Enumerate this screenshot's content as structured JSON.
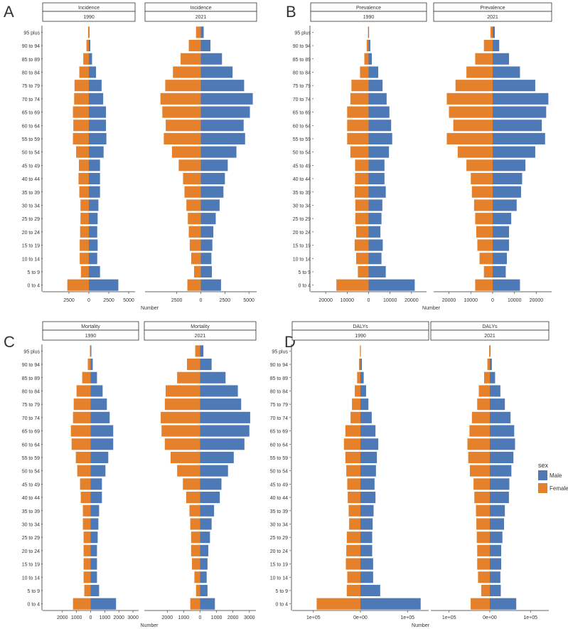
{
  "age_groups": [
    "0 to 4",
    "5 to 9",
    "10 to 14",
    "15 to 19",
    "20 to 24",
    "25 to 29",
    "30 to 34",
    "35 to 39",
    "40 to 44",
    "45 to 49",
    "50 to 54",
    "55 to 59",
    "60 to 64",
    "65 to 69",
    "70 to 74",
    "75 to 79",
    "80 to 84",
    "85 to 89",
    "90 to 94",
    "95 plus"
  ],
  "colors": {
    "male": "#4e79b7",
    "female": "#e5812b"
  },
  "legend": {
    "title": "sex",
    "items": [
      {
        "key": "male",
        "label": "Male"
      },
      {
        "key": "female",
        "label": "Female"
      }
    ]
  },
  "chart_data": [
    {
      "type": "bar",
      "panel_letter": "A",
      "measure": "Incidence",
      "xlabel": "Number",
      "scale": 5800,
      "ticks": [
        {
          "v": -2500,
          "label": "2500"
        },
        {
          "v": 0,
          "label": "0"
        },
        {
          "v": 2500,
          "label": "2500"
        },
        {
          "v": 5000,
          "label": "5000"
        }
      ],
      "facets": [
        {
          "strip_title": "Incidence",
          "strip_year": "1990",
          "male": [
            3700,
            1400,
            1050,
            1100,
            1050,
            1100,
            1200,
            1400,
            1400,
            1400,
            1850,
            2200,
            2150,
            2150,
            1800,
            1600,
            900,
            400,
            180,
            70
          ],
          "female": [
            2700,
            1000,
            1150,
            1150,
            1100,
            1050,
            1050,
            1200,
            1300,
            1250,
            1600,
            2000,
            1950,
            2000,
            1850,
            1800,
            1200,
            700,
            300,
            100
          ]
        },
        {
          "strip_title": "Incidence",
          "strip_year": "2021",
          "male": [
            2100,
            1150,
            1100,
            1200,
            1300,
            1550,
            1950,
            2350,
            2500,
            2800,
            3700,
            4600,
            4450,
            5100,
            5400,
            4500,
            3300,
            2200,
            1000,
            300
          ],
          "female": [
            1400,
            700,
            1000,
            1150,
            1250,
            1350,
            1500,
            1700,
            1850,
            2300,
            3000,
            3850,
            3650,
            4000,
            4200,
            3700,
            2900,
            2100,
            1250,
            500
          ]
        }
      ]
    },
    {
      "type": "bar",
      "panel_letter": "B",
      "measure": "Prevalence",
      "xlabel": "Number",
      "scale": 27000,
      "ticks": [
        {
          "v": -20000,
          "label": "20000"
        },
        {
          "v": -10000,
          "label": "10000"
        },
        {
          "v": 0,
          "label": "0"
        },
        {
          "v": 10000,
          "label": "10000"
        },
        {
          "v": 20000,
          "label": "20000"
        }
      ],
      "facets": [
        {
          "strip_title": "Prevalence",
          "strip_year": "1990",
          "male": [
            21500,
            8000,
            6000,
            6600,
            5500,
            6000,
            6400,
            8000,
            7400,
            7400,
            9500,
            11000,
            10500,
            9700,
            8400,
            6500,
            4500,
            1500,
            800,
            200
          ],
          "female": [
            15000,
            5000,
            5800,
            6500,
            5800,
            6200,
            6200,
            6500,
            6300,
            6300,
            8500,
            10000,
            10000,
            10000,
            8500,
            8000,
            4000,
            2000,
            900,
            300
          ]
        },
        {
          "strip_title": "Prevalence",
          "strip_year": "2021",
          "male": [
            12500,
            6000,
            6500,
            7500,
            7500,
            8500,
            11000,
            13000,
            13500,
            15000,
            19500,
            24000,
            22500,
            24500,
            25500,
            19500,
            12500,
            7500,
            3000,
            1000
          ],
          "female": [
            8000,
            4000,
            6000,
            7000,
            7500,
            8000,
            8500,
            9500,
            10000,
            12000,
            16000,
            21000,
            18000,
            20000,
            21000,
            17000,
            12000,
            8000,
            4000,
            1000
          ]
        }
      ]
    },
    {
      "type": "bar",
      "panel_letter": "C",
      "measure": "Mortality",
      "xlabel": "Number",
      "scale": 3400,
      "ticks": [
        {
          "v": -2000,
          "label": "2000"
        },
        {
          "v": -1000,
          "label": "1000"
        },
        {
          "v": 0,
          "label": "0"
        },
        {
          "v": 1000,
          "label": "1000"
        },
        {
          "v": 2000,
          "label": "2000"
        },
        {
          "v": 3000,
          "label": "3000"
        }
      ],
      "facets": [
        {
          "strip_title": "Mortality",
          "strip_year": "1990",
          "male": [
            1800,
            600,
            450,
            450,
            450,
            500,
            550,
            600,
            800,
            800,
            1050,
            1250,
            1600,
            1600,
            1350,
            1150,
            850,
            450,
            150,
            50
          ],
          "female": [
            1250,
            450,
            500,
            500,
            500,
            500,
            550,
            550,
            700,
            750,
            950,
            1050,
            1350,
            1400,
            1250,
            1200,
            1000,
            600,
            200,
            50
          ],
          "_note": "values approximate"
        },
        {
          "strip_title": "Mortality",
          "strip_year": "2021",
          "male": [
            900,
            450,
            400,
            450,
            500,
            600,
            700,
            850,
            1200,
            1300,
            1700,
            2050,
            2700,
            3000,
            3050,
            2500,
            2300,
            1550,
            700,
            200
          ],
          "female": [
            600,
            250,
            350,
            500,
            550,
            550,
            600,
            650,
            850,
            1050,
            1400,
            1800,
            2150,
            2350,
            2400,
            2150,
            2100,
            1400,
            800,
            300
          ]
        }
      ]
    },
    {
      "type": "bar",
      "panel_letter": "D",
      "measure": "DALYs",
      "xlabel": "Number",
      "scale": 145000,
      "ticks": [
        {
          "v": -100000,
          "label": "1e+05"
        },
        {
          "v": 0,
          "label": "0e+00"
        },
        {
          "v": 100000,
          "label": "1e+05"
        }
      ],
      "facets": [
        {
          "strip_title": "DALYs",
          "strip_year": "1990",
          "male": [
            128000,
            42000,
            27000,
            27000,
            25000,
            25000,
            26000,
            28000,
            32000,
            30000,
            33000,
            35000,
            38000,
            32000,
            24000,
            17000,
            12000,
            7000,
            3000,
            800
          ],
          "female": [
            93000,
            29000,
            28000,
            31000,
            30000,
            29000,
            24000,
            25000,
            27000,
            28000,
            30000,
            32000,
            35000,
            32000,
            21000,
            18000,
            12000,
            7000,
            3000,
            1000
          ]
        },
        {
          "strip_title": "DALYs",
          "strip_year": "2021",
          "male": [
            65000,
            27000,
            26000,
            28000,
            28000,
            31000,
            35000,
            37000,
            47000,
            48000,
            53000,
            58000,
            62000,
            60000,
            51000,
            37000,
            26000,
            13000,
            5000,
            1500
          ],
          "female": [
            47000,
            21000,
            29000,
            31000,
            31000,
            32000,
            33000,
            34000,
            38000,
            40000,
            49000,
            53000,
            55000,
            50000,
            44000,
            31000,
            27000,
            14000,
            6000,
            1500
          ]
        }
      ]
    }
  ]
}
